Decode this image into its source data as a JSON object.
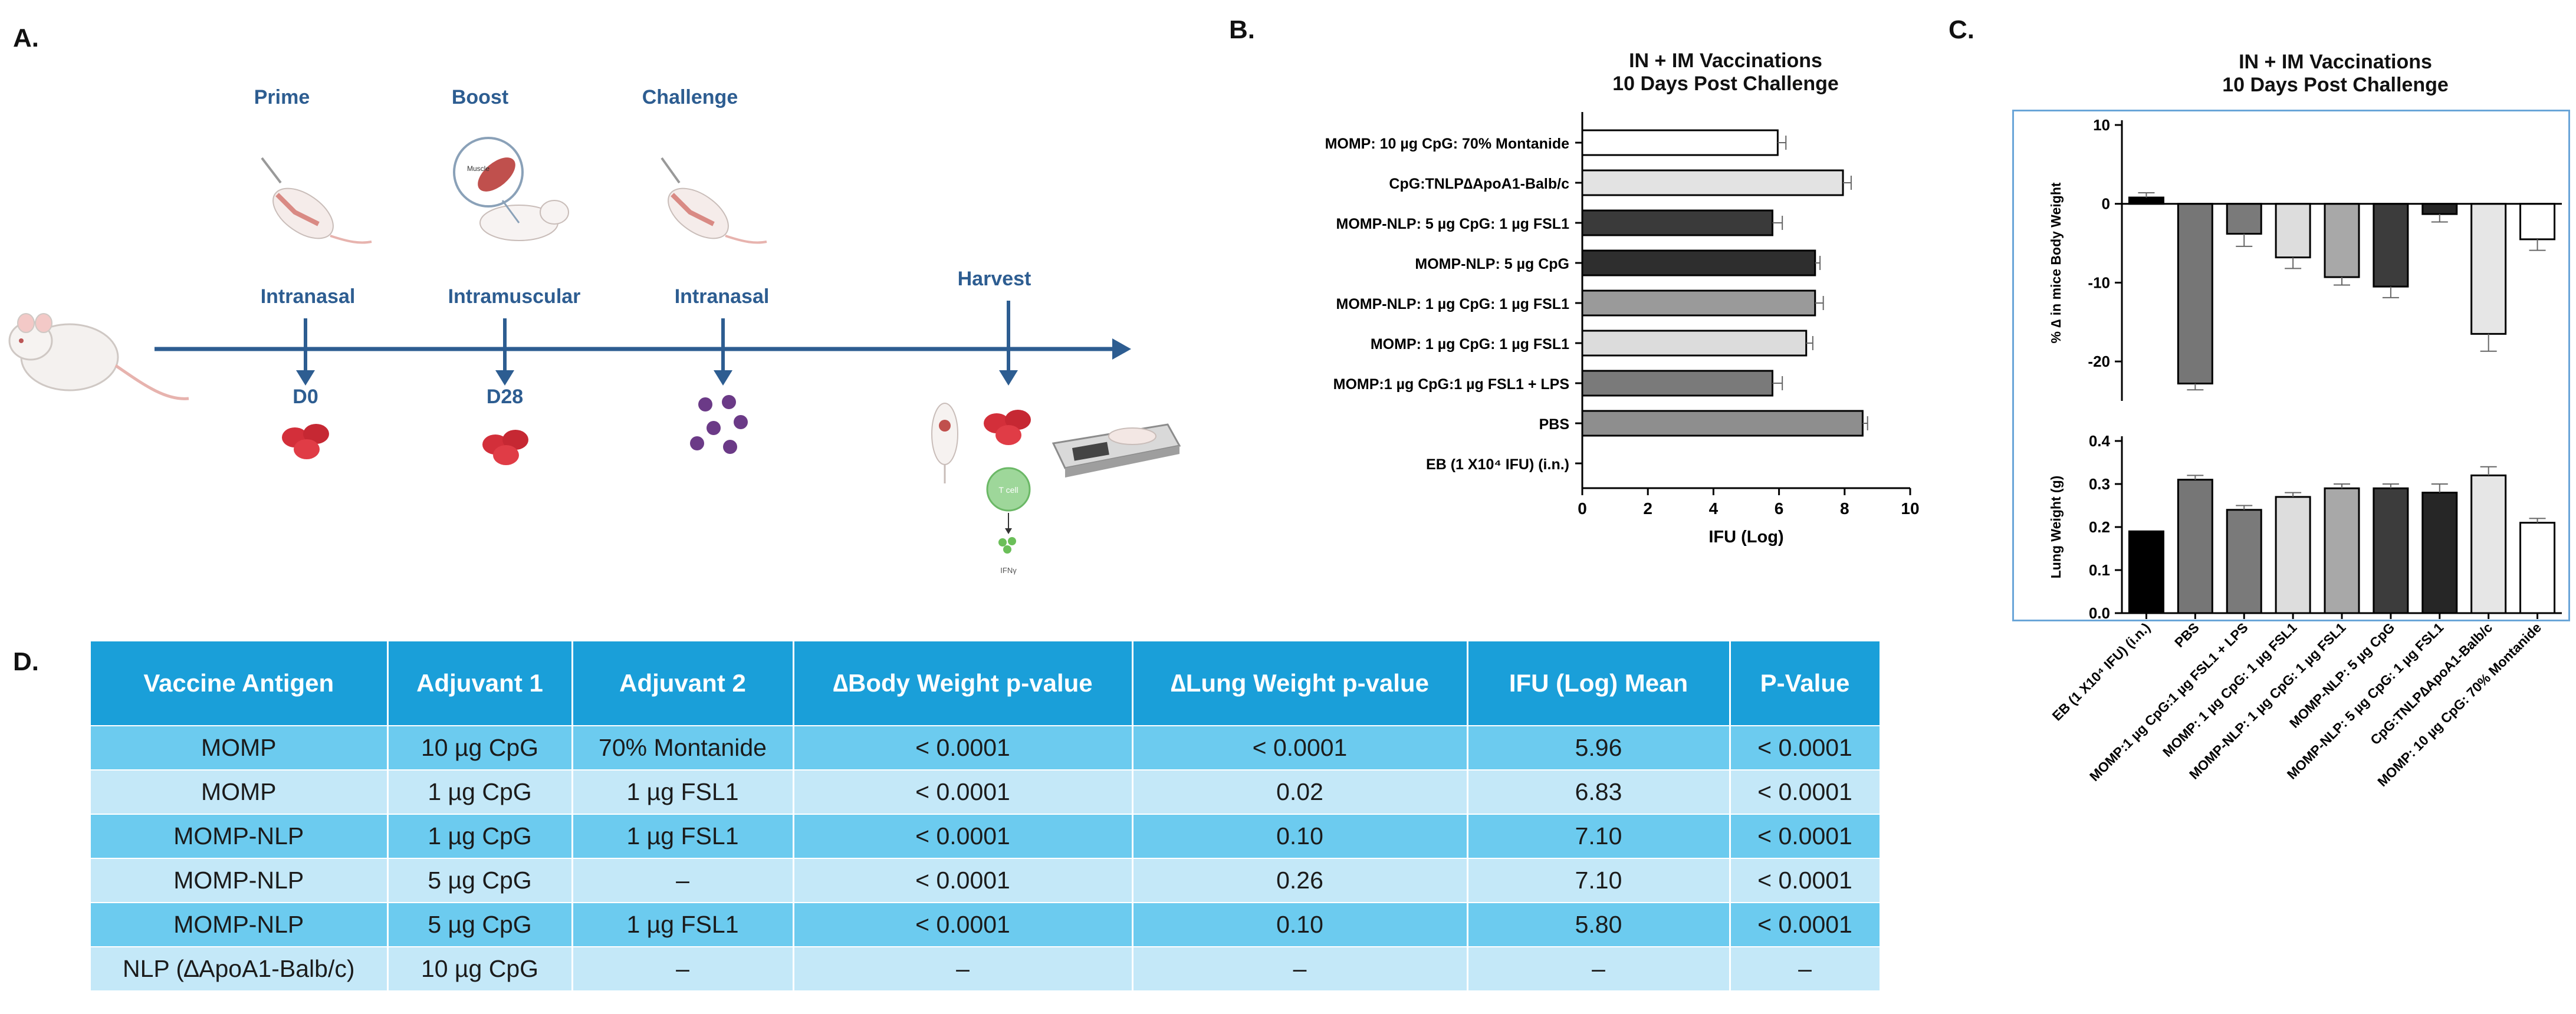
{
  "panels": {
    "a": "A.",
    "b": "B.",
    "c": "C.",
    "d": "D."
  },
  "timeline": {
    "steps": [
      {
        "top": "Prime",
        "route": "Intranasal",
        "day": "D0"
      },
      {
        "top": "Boost",
        "route": "Intramuscular",
        "day": "D28"
      },
      {
        "top": "Challenge",
        "route": "Intranasal",
        "day": ""
      },
      {
        "top": "",
        "route": "Harvest",
        "day": ""
      }
    ],
    "muscle_label": "Muscle",
    "tcell_label": "T cell",
    "ifn_label": "IFNγ"
  },
  "chart_data": [
    {
      "type": "bar",
      "orientation": "horizontal",
      "title": "IN + IM Vaccinations\n10 Days Post Challenge",
      "title_lines": [
        "IN + IM Vaccinations",
        "10 Days Post Challenge"
      ],
      "xlabel": "IFU (Log)",
      "xlim": [
        0,
        10
      ],
      "xticks": [
        0,
        2,
        4,
        6,
        8,
        10
      ],
      "categories": [
        "MOMP: 10 µg CpG: 70% Montanide",
        "CpG:TNLP∆ApoA1-Balb/c",
        "MOMP-NLP: 5 µg CpG: 1 µg FSL1",
        "MOMP-NLP: 5 µg CpG",
        "MOMP-NLP: 1 µg CpG: 1 µg FSL1",
        "MOMP: 1 µg CpG: 1 µg FSL1",
        "MOMP:1 µg CpG:1 µg FSL1 + LPS",
        "PBS",
        "EB (1 X10⁴ IFU) (i.n.)"
      ],
      "values": [
        5.96,
        7.95,
        5.8,
        7.1,
        7.1,
        6.83,
        5.8,
        8.55,
        0
      ],
      "errors": [
        0.25,
        0.25,
        0.3,
        0.15,
        0.25,
        0.2,
        0.3,
        0.15,
        0
      ],
      "colors": [
        "#ffffff",
        "#e3e3e3",
        "#3a3a3a",
        "#2e2e2e",
        "#9a9a9a",
        "#dcdcdc",
        "#7a7a7a",
        "#8e8e8e",
        "#ffffff"
      ]
    },
    {
      "type": "bar",
      "title": "IN + IM Vaccinations\n10 Days Post Challenge",
      "title_lines": [
        "IN + IM Vaccinations",
        "10 Days Post Challenge"
      ],
      "ylabel": "% ∆ in mice Body Weight",
      "ylim": [
        -25,
        10
      ],
      "yticks": [
        10,
        0,
        -10,
        -20
      ],
      "categories": [
        "EB (1 X10⁴ IFU) (i.n.)",
        "PBS",
        "MOMP:1 µg CpG:1 µg FSL1 + LPS",
        "MOMP: 1 µg CpG: 1 µg FSL1",
        "MOMP-NLP: 1 µg CpG: 1 µg FSL1",
        "MOMP-NLP: 5 µg CpG",
        "MOMP-NLP: 5 µg CpG: 1 µg FSL1",
        "CpG:TNLP∆ApoA1-Balb/c",
        "MOMP: 10 µg CpG: 70% Montanide"
      ],
      "values": [
        0.8,
        -22.8,
        -3.8,
        -6.8,
        -9.3,
        -10.5,
        -1.3,
        -16.5,
        -4.5
      ],
      "errors": [
        0.6,
        0.8,
        1.6,
        1.4,
        1.0,
        1.4,
        1.0,
        2.2,
        1.4
      ],
      "colors": [
        "#000000",
        "#767676",
        "#7a7a7a",
        "#dddddd",
        "#a8a8a8",
        "#3c3c3c",
        "#262626",
        "#e6e6e6",
        "#ffffff"
      ]
    },
    {
      "type": "bar",
      "ylabel": "Lung Weight (g)",
      "ylim": [
        0,
        0.4
      ],
      "yticks": [
        0.4,
        0.3,
        0.2,
        0.1,
        0.0
      ],
      "ytick_labels": [
        "0.4",
        "0.3",
        "0.2",
        "0.1",
        "0.0"
      ],
      "categories": [
        "EB (1 X10⁴ IFU) (i.n.)",
        "PBS",
        "MOMP:1 µg CpG:1 µg FSL1 + LPS",
        "MOMP: 1 µg CpG: 1 µg FSL1",
        "MOMP-NLP: 1 µg CpG: 1 µg FSL1",
        "MOMP-NLP: 5 µg CpG",
        "MOMP-NLP: 5 µg CpG: 1 µg FSL1",
        "CpG:TNLP∆ApoA1-Balb/c",
        "MOMP: 10 µg CpG: 70% Montanide"
      ],
      "values": [
        0.19,
        0.31,
        0.24,
        0.27,
        0.29,
        0.29,
        0.28,
        0.32,
        0.21
      ],
      "errors": [
        0,
        0.01,
        0.01,
        0.01,
        0.01,
        0.01,
        0.02,
        0.02,
        0.01
      ],
      "colors": [
        "#000000",
        "#767676",
        "#7a7a7a",
        "#dddddd",
        "#a8a8a8",
        "#3c3c3c",
        "#262626",
        "#e6e6e6",
        "#ffffff"
      ]
    },
    {
      "type": "table",
      "headers": [
        "Vaccine Antigen",
        "Adjuvant 1",
        "Adjuvant 2",
        "∆Body Weight p-value",
        "∆Lung Weight p-value",
        "IFU (Log) Mean",
        "P-Value"
      ],
      "rows": [
        [
          "MOMP",
          "10 µg CpG",
          "70% Montanide",
          "< 0.0001",
          "< 0.0001",
          "5.96",
          "< 0.0001"
        ],
        [
          "MOMP",
          "1 µg CpG",
          "1 µg FSL1",
          "< 0.0001",
          "0.02",
          "6.83",
          "< 0.0001"
        ],
        [
          "MOMP-NLP",
          "1 µg CpG",
          "1 µg FSL1",
          "< 0.0001",
          "0.10",
          "7.10",
          "< 0.0001"
        ],
        [
          "MOMP-NLP",
          "5 µg CpG",
          "–",
          "< 0.0001",
          "0.26",
          "7.10",
          "< 0.0001"
        ],
        [
          "MOMP-NLP",
          "5 µg CpG",
          "1 µg FSL1",
          "< 0.0001",
          "0.10",
          "5.80",
          "< 0.0001"
        ],
        [
          "NLP (∆ApoA1-Balb/c)",
          "10 µg CpG",
          "–",
          "–",
          "–",
          "–",
          "–"
        ]
      ]
    }
  ]
}
